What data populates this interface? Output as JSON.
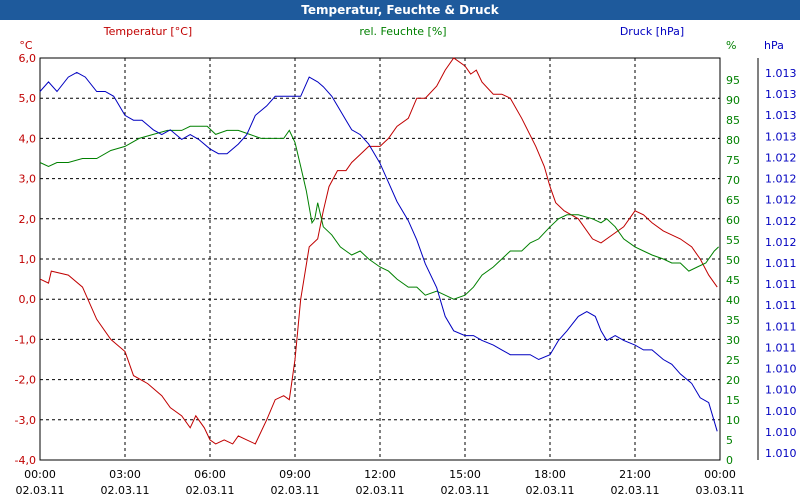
{
  "window": {
    "title": "Temperatur, Feuchte & Druck"
  },
  "chart_data": {
    "type": "line",
    "title": "Temperatur, Feuchte & Druck",
    "x_ticks": [
      {
        "time": "00:00",
        "date": "02.03.11"
      },
      {
        "time": "03:00",
        "date": "02.03.11"
      },
      {
        "time": "06:00",
        "date": "02.03.11"
      },
      {
        "time": "09:00",
        "date": "02.03.11"
      },
      {
        "time": "12:00",
        "date": "02.03.11"
      },
      {
        "time": "15:00",
        "date": "02.03.11"
      },
      {
        "time": "18:00",
        "date": "02.03.11"
      },
      {
        "time": "21:00",
        "date": "02.03.11"
      },
      {
        "time": "00:00",
        "date": "03.03.11"
      }
    ],
    "x_hours_range": [
      0,
      24
    ],
    "grid": true,
    "axes": {
      "temperature": {
        "unit": "°C",
        "range": [
          -4,
          6
        ],
        "ticks": [
          "6,0",
          "5,0",
          "4,0",
          "3,0",
          "2,0",
          "1,0",
          "0,0",
          "-1,0",
          "-2,0",
          "-3,0",
          "-4,0"
        ],
        "color": "#c00000"
      },
      "humidity": {
        "unit": "%",
        "range": [
          0,
          100
        ],
        "ticks": [
          "95",
          "90",
          "85",
          "80",
          "75",
          "70",
          "65",
          "60",
          "55",
          "50",
          "45",
          "40",
          "35",
          "30",
          "25",
          "20",
          "15",
          "10",
          "5",
          "0"
        ],
        "color": "#008000"
      },
      "pressure": {
        "unit": "hPa",
        "range": [
          1009.5,
          1013.7
        ],
        "ticks": [
          "1.013",
          "1.013",
          "1.013",
          "1.013",
          "1.012",
          "1.012",
          "1.012",
          "1.012",
          "1.012",
          "1.011",
          "1.011",
          "1.011",
          "1.011",
          "1.011",
          "1.010",
          "1.010",
          "1.010",
          "1.010",
          "1.010"
        ],
        "color": "#0000c0"
      }
    },
    "series": [
      {
        "name": "Temperatur [°C]",
        "axis": "temperature",
        "color": "#c00000",
        "points": [
          [
            0,
            0.5
          ],
          [
            0.3,
            0.4
          ],
          [
            0.4,
            0.7
          ],
          [
            1.0,
            0.6
          ],
          [
            1.5,
            0.3
          ],
          [
            2.0,
            -0.5
          ],
          [
            2.5,
            -1.0
          ],
          [
            3.0,
            -1.3
          ],
          [
            3.3,
            -1.9
          ],
          [
            3.8,
            -2.1
          ],
          [
            4.3,
            -2.4
          ],
          [
            4.6,
            -2.7
          ],
          [
            5.0,
            -2.9
          ],
          [
            5.3,
            -3.2
          ],
          [
            5.5,
            -2.9
          ],
          [
            5.8,
            -3.2
          ],
          [
            6.0,
            -3.5
          ],
          [
            6.2,
            -3.6
          ],
          [
            6.5,
            -3.5
          ],
          [
            6.8,
            -3.6
          ],
          [
            7.0,
            -3.4
          ],
          [
            7.3,
            -3.5
          ],
          [
            7.6,
            -3.6
          ],
          [
            8.0,
            -3.0
          ],
          [
            8.3,
            -2.5
          ],
          [
            8.6,
            -2.4
          ],
          [
            8.8,
            -2.5
          ],
          [
            9.0,
            -1.5
          ],
          [
            9.2,
            0.0
          ],
          [
            9.5,
            1.3
          ],
          [
            9.8,
            1.5
          ],
          [
            10.0,
            2.2
          ],
          [
            10.2,
            2.8
          ],
          [
            10.5,
            3.2
          ],
          [
            10.8,
            3.2
          ],
          [
            11.0,
            3.4
          ],
          [
            11.3,
            3.6
          ],
          [
            11.6,
            3.8
          ],
          [
            12.0,
            3.8
          ],
          [
            12.3,
            4.0
          ],
          [
            12.6,
            4.3
          ],
          [
            13.0,
            4.5
          ],
          [
            13.3,
            5.0
          ],
          [
            13.6,
            5.0
          ],
          [
            14.0,
            5.3
          ],
          [
            14.3,
            5.7
          ],
          [
            14.6,
            6.0
          ],
          [
            15.0,
            5.8
          ],
          [
            15.2,
            5.6
          ],
          [
            15.4,
            5.7
          ],
          [
            15.6,
            5.4
          ],
          [
            16.0,
            5.1
          ],
          [
            16.3,
            5.1
          ],
          [
            16.6,
            5.0
          ],
          [
            17.0,
            4.5
          ],
          [
            17.5,
            3.8
          ],
          [
            17.8,
            3.3
          ],
          [
            18.0,
            2.8
          ],
          [
            18.2,
            2.4
          ],
          [
            18.5,
            2.2
          ],
          [
            19.0,
            2.0
          ],
          [
            19.5,
            1.5
          ],
          [
            19.8,
            1.4
          ],
          [
            20.2,
            1.6
          ],
          [
            20.6,
            1.8
          ],
          [
            21.0,
            2.2
          ],
          [
            21.3,
            2.1
          ],
          [
            21.6,
            1.9
          ],
          [
            22.0,
            1.7
          ],
          [
            22.3,
            1.6
          ],
          [
            22.6,
            1.5
          ],
          [
            23.0,
            1.3
          ],
          [
            23.3,
            1.0
          ],
          [
            23.6,
            0.6
          ],
          [
            23.9,
            0.3
          ]
        ]
      },
      {
        "name": "rel. Feuchte [%]",
        "axis": "humidity",
        "color": "#008000",
        "points": [
          [
            0,
            74
          ],
          [
            0.3,
            73
          ],
          [
            0.6,
            74
          ],
          [
            1.0,
            74
          ],
          [
            1.5,
            75
          ],
          [
            2.0,
            75
          ],
          [
            2.5,
            77
          ],
          [
            3.0,
            78
          ],
          [
            3.5,
            80
          ],
          [
            4.0,
            81
          ],
          [
            4.5,
            82
          ],
          [
            5.0,
            82
          ],
          [
            5.3,
            83
          ],
          [
            5.6,
            83
          ],
          [
            5.9,
            83
          ],
          [
            6.2,
            81
          ],
          [
            6.6,
            82
          ],
          [
            7.0,
            82
          ],
          [
            7.4,
            81
          ],
          [
            7.8,
            80
          ],
          [
            8.2,
            80
          ],
          [
            8.6,
            80
          ],
          [
            8.8,
            82
          ],
          [
            9.0,
            79
          ],
          [
            9.2,
            73
          ],
          [
            9.4,
            67
          ],
          [
            9.6,
            59
          ],
          [
            9.7,
            60
          ],
          [
            9.8,
            64
          ],
          [
            10.0,
            58
          ],
          [
            10.3,
            56
          ],
          [
            10.6,
            53
          ],
          [
            10.8,
            52
          ],
          [
            11.0,
            51
          ],
          [
            11.3,
            52
          ],
          [
            11.6,
            50
          ],
          [
            12.0,
            48
          ],
          [
            12.3,
            47
          ],
          [
            12.6,
            45
          ],
          [
            13.0,
            43
          ],
          [
            13.3,
            43
          ],
          [
            13.6,
            41
          ],
          [
            14.0,
            42
          ],
          [
            14.3,
            41
          ],
          [
            14.6,
            40
          ],
          [
            15.0,
            41
          ],
          [
            15.3,
            43
          ],
          [
            15.6,
            46
          ],
          [
            16.0,
            48
          ],
          [
            16.3,
            50
          ],
          [
            16.6,
            52
          ],
          [
            17.0,
            52
          ],
          [
            17.3,
            54
          ],
          [
            17.6,
            55
          ],
          [
            18.0,
            58
          ],
          [
            18.3,
            60
          ],
          [
            18.6,
            61
          ],
          [
            19.0,
            61
          ],
          [
            19.5,
            60
          ],
          [
            19.8,
            59
          ],
          [
            20.0,
            60
          ],
          [
            20.3,
            58
          ],
          [
            20.6,
            55
          ],
          [
            21.0,
            53
          ],
          [
            21.3,
            52
          ],
          [
            21.6,
            51
          ],
          [
            22.0,
            50
          ],
          [
            22.3,
            49
          ],
          [
            22.6,
            49
          ],
          [
            22.9,
            47
          ],
          [
            23.2,
            48
          ],
          [
            23.5,
            49
          ],
          [
            23.8,
            52
          ],
          [
            23.95,
            53
          ]
        ]
      },
      {
        "name": "Druck [hPa]",
        "axis": "pressure",
        "color": "#0000c0",
        "points": [
          [
            0,
            1013.35
          ],
          [
            0.3,
            1013.45
          ],
          [
            0.6,
            1013.35
          ],
          [
            1.0,
            1013.5
          ],
          [
            1.3,
            1013.55
          ],
          [
            1.6,
            1013.5
          ],
          [
            2.0,
            1013.35
          ],
          [
            2.3,
            1013.35
          ],
          [
            2.6,
            1013.3
          ],
          [
            3.0,
            1013.1
          ],
          [
            3.3,
            1013.05
          ],
          [
            3.6,
            1013.05
          ],
          [
            4.0,
            1012.95
          ],
          [
            4.3,
            1012.9
          ],
          [
            4.6,
            1012.95
          ],
          [
            5.0,
            1012.85
          ],
          [
            5.3,
            1012.9
          ],
          [
            5.6,
            1012.85
          ],
          [
            6.0,
            1012.75
          ],
          [
            6.3,
            1012.7
          ],
          [
            6.6,
            1012.7
          ],
          [
            7.0,
            1012.8
          ],
          [
            7.3,
            1012.9
          ],
          [
            7.6,
            1013.1
          ],
          [
            8.0,
            1013.2
          ],
          [
            8.3,
            1013.3
          ],
          [
            8.6,
            1013.3
          ],
          [
            9.0,
            1013.3
          ],
          [
            9.2,
            1013.3
          ],
          [
            9.5,
            1013.5
          ],
          [
            9.8,
            1013.45
          ],
          [
            10.0,
            1013.4
          ],
          [
            10.3,
            1013.3
          ],
          [
            10.5,
            1013.2
          ],
          [
            10.8,
            1013.05
          ],
          [
            11.0,
            1012.95
          ],
          [
            11.3,
            1012.9
          ],
          [
            11.6,
            1012.8
          ],
          [
            12.0,
            1012.6
          ],
          [
            12.3,
            1012.4
          ],
          [
            12.6,
            1012.2
          ],
          [
            13.0,
            1012.0
          ],
          [
            13.3,
            1011.8
          ],
          [
            13.6,
            1011.55
          ],
          [
            14.0,
            1011.3
          ],
          [
            14.3,
            1011.0
          ],
          [
            14.6,
            1010.85
          ],
          [
            15.0,
            1010.8
          ],
          [
            15.3,
            1010.8
          ],
          [
            15.6,
            1010.75
          ],
          [
            16.0,
            1010.7
          ],
          [
            16.3,
            1010.65
          ],
          [
            16.6,
            1010.6
          ],
          [
            17.0,
            1010.6
          ],
          [
            17.3,
            1010.6
          ],
          [
            17.6,
            1010.55
          ],
          [
            18.0,
            1010.6
          ],
          [
            18.3,
            1010.75
          ],
          [
            18.6,
            1010.85
          ],
          [
            19.0,
            1011.0
          ],
          [
            19.3,
            1011.05
          ],
          [
            19.6,
            1011.0
          ],
          [
            19.8,
            1010.85
          ],
          [
            20.0,
            1010.75
          ],
          [
            20.3,
            1010.8
          ],
          [
            20.6,
            1010.75
          ],
          [
            21.0,
            1010.7
          ],
          [
            21.3,
            1010.65
          ],
          [
            21.6,
            1010.65
          ],
          [
            22.0,
            1010.55
          ],
          [
            22.3,
            1010.5
          ],
          [
            22.6,
            1010.4
          ],
          [
            23.0,
            1010.3
          ],
          [
            23.3,
            1010.15
          ],
          [
            23.6,
            1010.1
          ],
          [
            23.9,
            1009.8
          ]
        ]
      }
    ]
  }
}
